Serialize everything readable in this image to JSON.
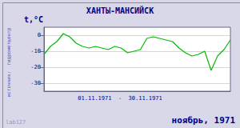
{
  "chart_data": {
    "type": "line",
    "title": "ХАНТЫ-МАНСИЙСК",
    "ylabel": "t,°C",
    "annotations": [
      "01.11.1971  -  30.11.1971",
      "ноябрь, 1971",
      "источник:  гидрометцентр",
      "lab127"
    ],
    "x": [
      1,
      2,
      3,
      4,
      5,
      6,
      7,
      8,
      9,
      10,
      11,
      12,
      13,
      14,
      15,
      16,
      17,
      18,
      19,
      20,
      21,
      22,
      23,
      24,
      25,
      26,
      27,
      28,
      29,
      30
    ],
    "values": [
      -12,
      -7,
      -4,
      1,
      -1,
      -5,
      -7,
      -8,
      -7,
      -8,
      -9,
      -7,
      -8,
      -11,
      -10,
      -9,
      -2,
      -1,
      -2,
      -3,
      -4,
      -8,
      -11,
      -13,
      -12,
      -10,
      -22,
      -13,
      -9,
      -3
    ],
    "color": "#00bb00",
    "xlim": [
      1,
      30
    ],
    "ylim": [
      -35,
      5
    ],
    "yticks": [
      0,
      -10,
      -20,
      -30
    ],
    "grid": true,
    "tick_labels": "y"
  }
}
